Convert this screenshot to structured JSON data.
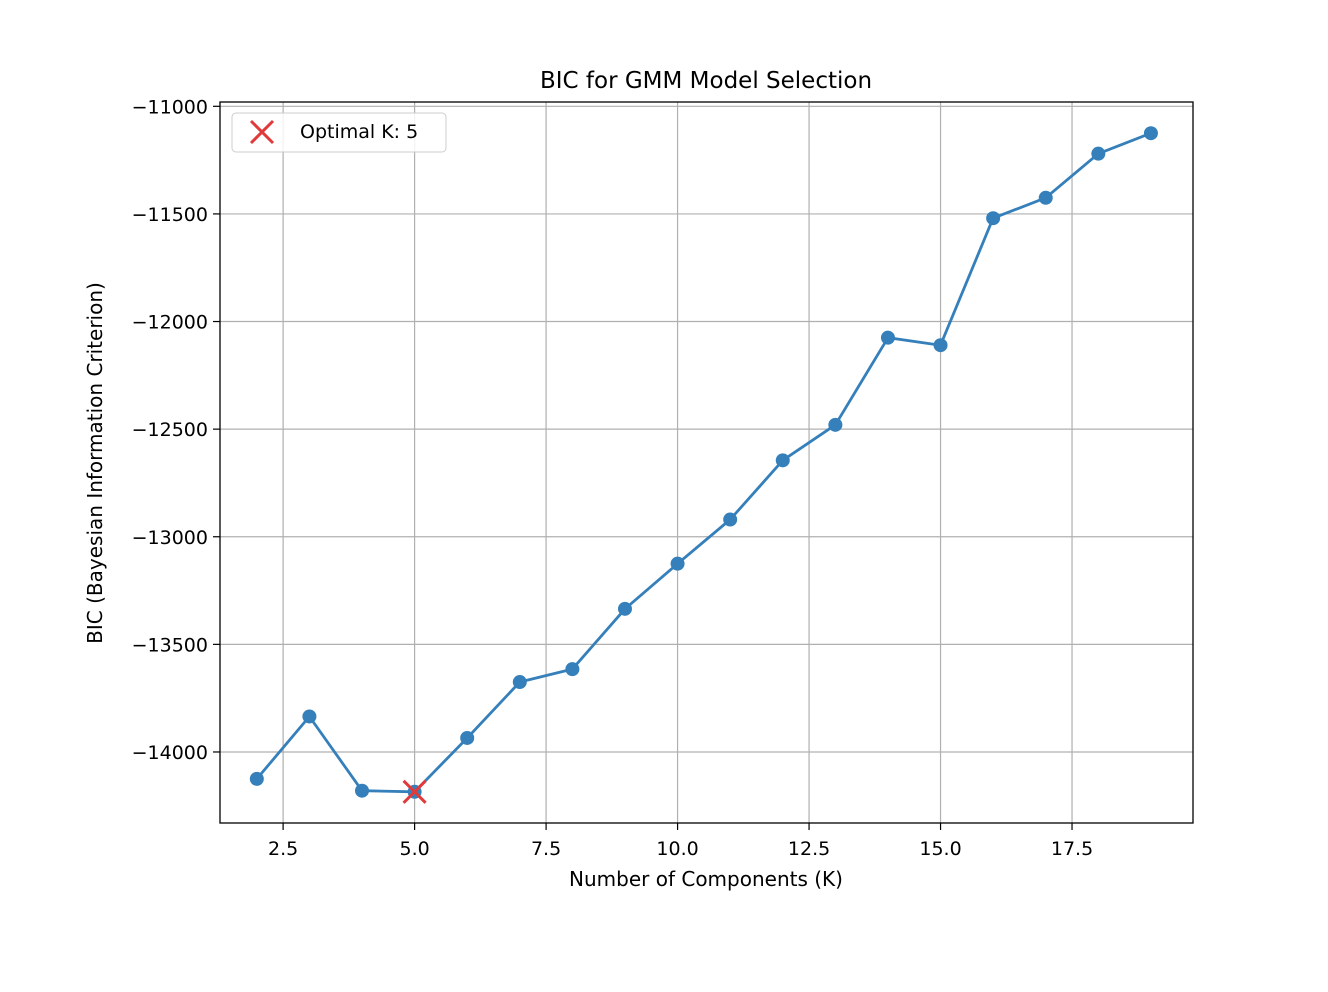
{
  "chart_data": {
    "type": "line",
    "title": "BIC for GMM Model Selection",
    "xlabel": "Number of Components (K)",
    "ylabel": "BIC (Bayesian Information Criterion)",
    "xlim": [
      1.3,
      19.8
    ],
    "ylim": [
      -14330,
      -10980
    ],
    "xticks": [
      2.5,
      5.0,
      7.5,
      10.0,
      12.5,
      15.0,
      17.5
    ],
    "xtick_labels": [
      "2.5",
      "5.0",
      "7.5",
      "10.0",
      "12.5",
      "15.0",
      "17.5"
    ],
    "yticks": [
      -11000,
      -11500,
      -12000,
      -12500,
      -13000,
      -13500,
      -14000
    ],
    "ytick_labels": [
      "−11000",
      "−11500",
      "−12000",
      "−12500",
      "−13000",
      "−13500",
      "−14000"
    ],
    "grid": true,
    "series": [
      {
        "color": "#3580bb",
        "marker": "circle",
        "x": [
          2,
          3,
          4,
          5,
          6,
          7,
          8,
          9,
          10,
          11,
          12,
          13,
          14,
          15,
          16,
          17,
          18,
          19
        ],
        "y": [
          -14125,
          -13835,
          -14180,
          -14185,
          -13935,
          -13675,
          -13615,
          -13335,
          -13125,
          -12920,
          -12645,
          -12480,
          -12075,
          -12110,
          -11520,
          -11425,
          -11220,
          -11125
        ]
      }
    ],
    "highlight": {
      "label": "Optimal K: 5",
      "x": 5,
      "y": -14185,
      "marker": "x",
      "color": "#e03a3a"
    },
    "legend": {
      "position": "top-left",
      "entries": [
        {
          "label": "Optimal K: 5",
          "marker": "x",
          "color": "#e03a3a"
        }
      ]
    }
  }
}
